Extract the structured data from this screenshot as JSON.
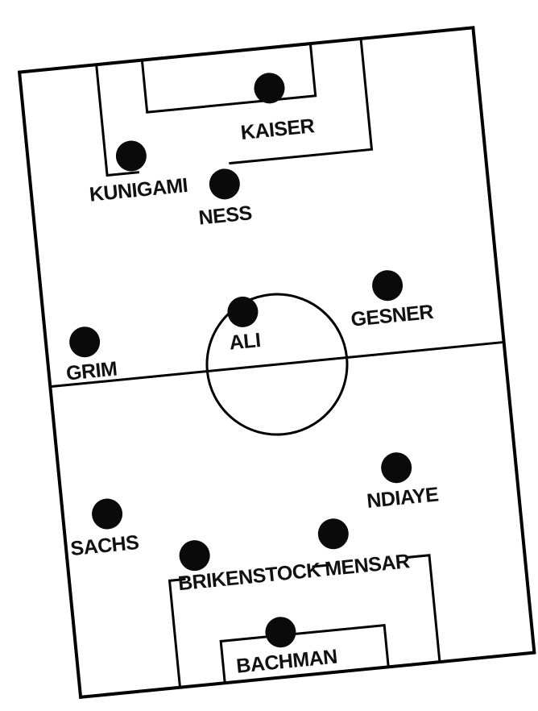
{
  "formation": {
    "players": [
      {
        "name": "KAISER",
        "half": "top"
      },
      {
        "name": "KUNIGAMI",
        "half": "top"
      },
      {
        "name": "NESS",
        "half": "top"
      },
      {
        "name": "GRIM",
        "half": "top"
      },
      {
        "name": "ALI",
        "half": "top"
      },
      {
        "name": "GESNER",
        "half": "top"
      },
      {
        "name": "SACHS",
        "half": "bottom"
      },
      {
        "name": "NDIAYE",
        "half": "bottom"
      },
      {
        "name": "BRIKENSTOCK",
        "half": "bottom"
      },
      {
        "name": "MENSAR",
        "half": "bottom"
      },
      {
        "name": "BACHMAN",
        "half": "bottom"
      }
    ]
  },
  "colors": {
    "lines": "#000000",
    "player_dot": "#0a0a0a",
    "background": "#ffffff"
  }
}
